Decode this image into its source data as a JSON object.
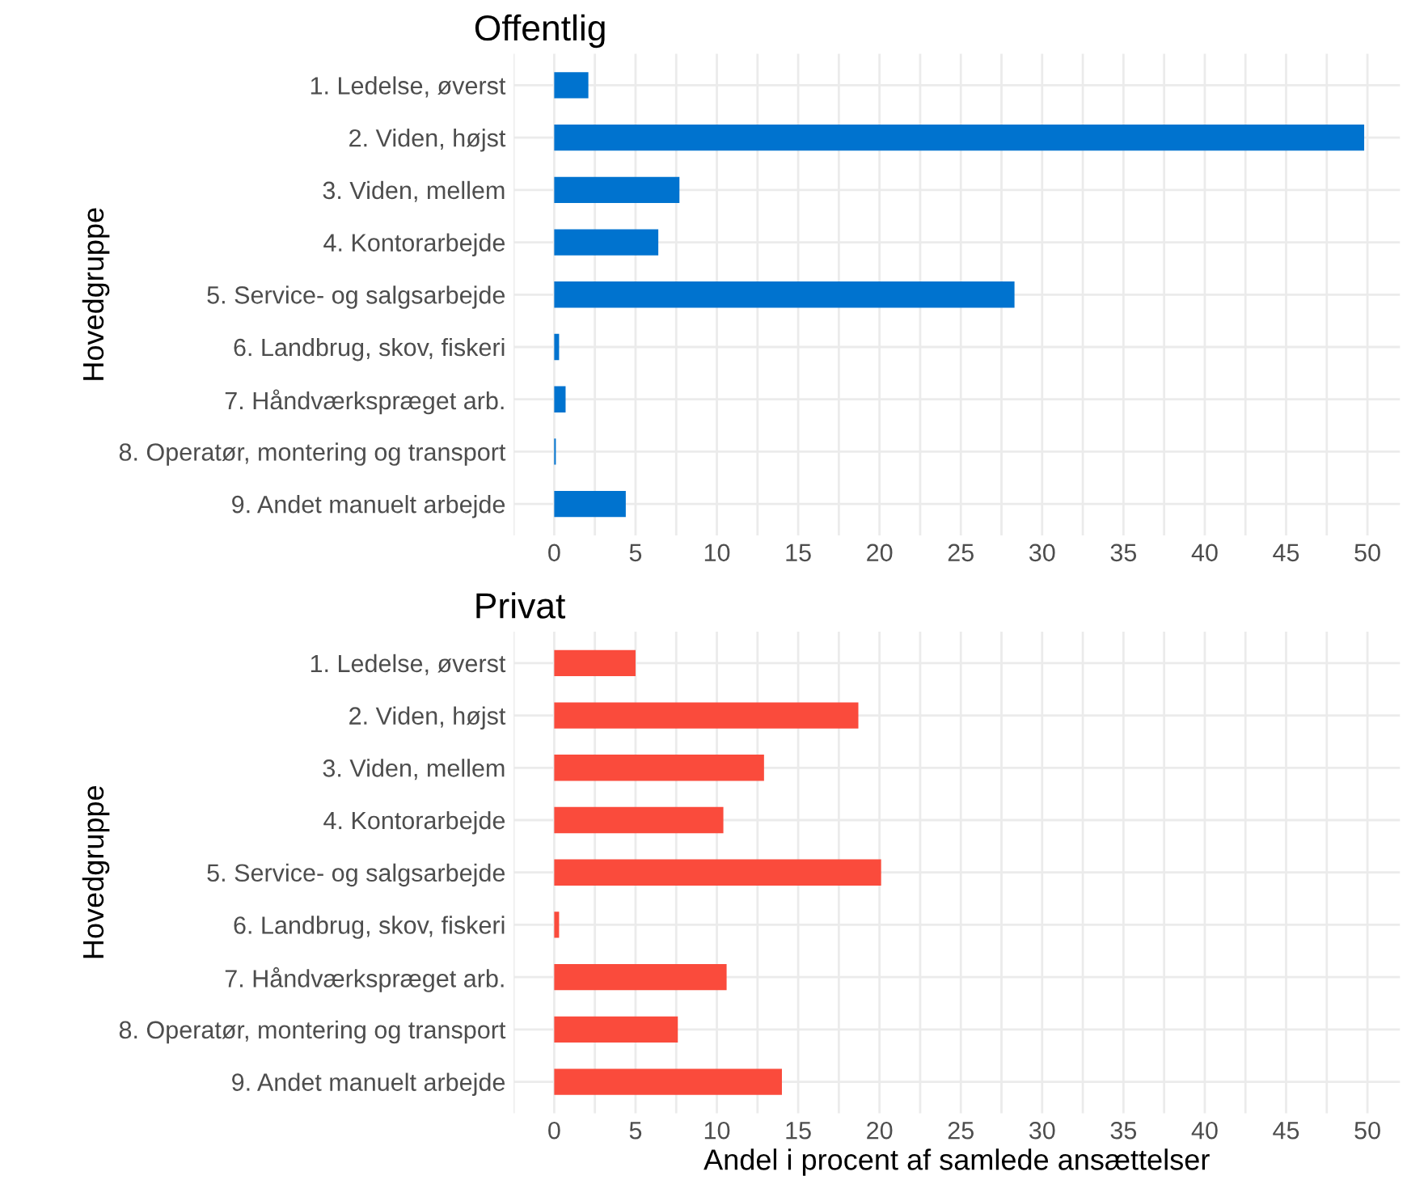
{
  "chart_data": [
    {
      "type": "bar",
      "title": "Offentlig",
      "ylabel": "Hovedgruppe",
      "orientation": "horizontal",
      "grid": true,
      "categories": [
        "1. Ledelse, øverst",
        "2. Viden, højst",
        "3. Viden, mellem",
        "4. Kontorarbejde",
        "5. Service- og salgsarbejde",
        "6. Landbrug, skov, fiskeri",
        "7. Håndværkspræget arb.",
        "8. Operatør, montering og transport",
        "9. Andet manuelt arbejde"
      ],
      "values": [
        2.1,
        49.8,
        7.7,
        6.4,
        28.3,
        0.3,
        0.7,
        0.1,
        4.4
      ],
      "color": "#0073cf",
      "xlim": [
        -2.5,
        52
      ],
      "xticks": [
        {
          "value": -2.5,
          "label": null
        },
        0,
        {
          "value": 2.5,
          "label": null
        },
        5,
        {
          "value": 7.5,
          "label": null
        },
        10,
        {
          "value": 12.5,
          "label": null
        },
        15,
        {
          "value": 17.5,
          "label": null
        },
        20,
        {
          "value": 22.5,
          "label": null
        },
        25,
        {
          "value": 27.5,
          "label": null
        },
        30,
        {
          "value": 32.5,
          "label": null
        },
        35,
        {
          "value": 37.5,
          "label": null
        },
        40,
        {
          "value": 42.5,
          "label": null
        },
        45,
        {
          "value": 47.5,
          "label": null
        },
        50
      ]
    },
    {
      "type": "bar",
      "title": "Privat",
      "ylabel": "Hovedgruppe",
      "xlabel": "Andel i procent af samlede ansættelser",
      "orientation": "horizontal",
      "grid": true,
      "categories": [
        "1. Ledelse, øverst",
        "2. Viden, højst",
        "3. Viden, mellem",
        "4. Kontorarbejde",
        "5. Service- og salgsarbejde",
        "6. Landbrug, skov, fiskeri",
        "7. Håndværkspræget arb.",
        "8. Operatør, montering og transport",
        "9. Andet manuelt arbejde"
      ],
      "values": [
        5.0,
        18.7,
        12.9,
        10.4,
        20.1,
        0.3,
        10.6,
        7.6,
        14.0
      ],
      "color": "#fa4b3c",
      "xlim": [
        -2.5,
        52
      ],
      "xticks": [
        {
          "value": -2.5,
          "label": null
        },
        0,
        {
          "value": 2.5,
          "label": null
        },
        5,
        {
          "value": 7.5,
          "label": null
        },
        10,
        {
          "value": 12.5,
          "label": null
        },
        15,
        {
          "value": 17.5,
          "label": null
        },
        20,
        {
          "value": 22.5,
          "label": null
        },
        25,
        {
          "value": 27.5,
          "label": null
        },
        30,
        {
          "value": 32.5,
          "label": null
        },
        35,
        {
          "value": 37.5,
          "label": null
        },
        40,
        {
          "value": 42.5,
          "label": null
        },
        45,
        {
          "value": 47.5,
          "label": null
        },
        50
      ]
    }
  ]
}
